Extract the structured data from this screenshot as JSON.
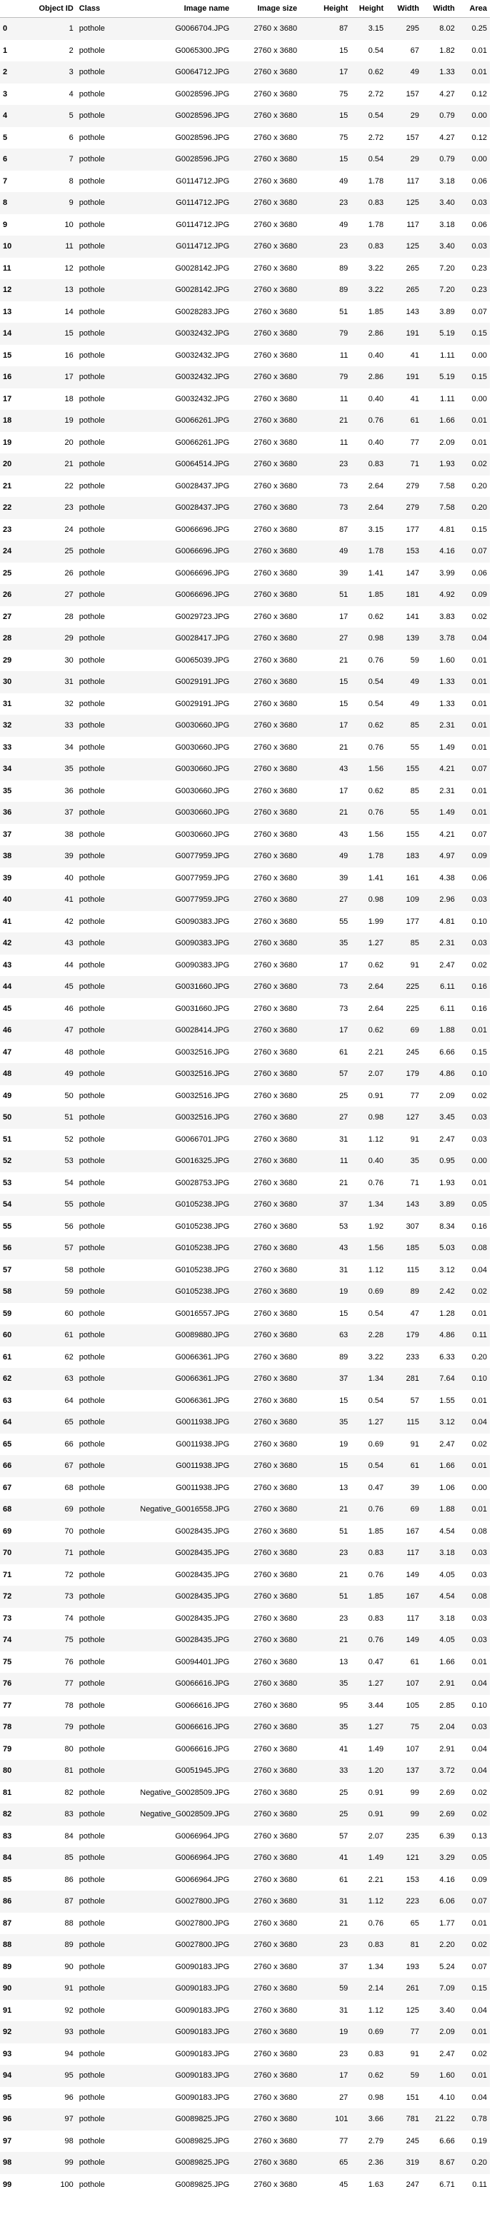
{
  "columns": [
    "",
    "Object ID",
    "Class",
    "Image name",
    "Image size",
    "Height",
    "Height",
    "Width",
    "Width",
    "Area"
  ],
  "rows": [
    [
      "0",
      "1",
      "pothole",
      "G0066704.JPG",
      "2760 x 3680",
      "87",
      "3.15",
      "295",
      "8.02",
      "0.25"
    ],
    [
      "1",
      "2",
      "pothole",
      "G0065300.JPG",
      "2760 x 3680",
      "15",
      "0.54",
      "67",
      "1.82",
      "0.01"
    ],
    [
      "2",
      "3",
      "pothole",
      "G0064712.JPG",
      "2760 x 3680",
      "17",
      "0.62",
      "49",
      "1.33",
      "0.01"
    ],
    [
      "3",
      "4",
      "pothole",
      "G0028596.JPG",
      "2760 x 3680",
      "75",
      "2.72",
      "157",
      "4.27",
      "0.12"
    ],
    [
      "4",
      "5",
      "pothole",
      "G0028596.JPG",
      "2760 x 3680",
      "15",
      "0.54",
      "29",
      "0.79",
      "0.00"
    ],
    [
      "5",
      "6",
      "pothole",
      "G0028596.JPG",
      "2760 x 3680",
      "75",
      "2.72",
      "157",
      "4.27",
      "0.12"
    ],
    [
      "6",
      "7",
      "pothole",
      "G0028596.JPG",
      "2760 x 3680",
      "15",
      "0.54",
      "29",
      "0.79",
      "0.00"
    ],
    [
      "7",
      "8",
      "pothole",
      "G0114712.JPG",
      "2760 x 3680",
      "49",
      "1.78",
      "117",
      "3.18",
      "0.06"
    ],
    [
      "8",
      "9",
      "pothole",
      "G0114712.JPG",
      "2760 x 3680",
      "23",
      "0.83",
      "125",
      "3.40",
      "0.03"
    ],
    [
      "9",
      "10",
      "pothole",
      "G0114712.JPG",
      "2760 x 3680",
      "49",
      "1.78",
      "117",
      "3.18",
      "0.06"
    ],
    [
      "10",
      "11",
      "pothole",
      "G0114712.JPG",
      "2760 x 3680",
      "23",
      "0.83",
      "125",
      "3.40",
      "0.03"
    ],
    [
      "11",
      "12",
      "pothole",
      "G0028142.JPG",
      "2760 x 3680",
      "89",
      "3.22",
      "265",
      "7.20",
      "0.23"
    ],
    [
      "12",
      "13",
      "pothole",
      "G0028142.JPG",
      "2760 x 3680",
      "89",
      "3.22",
      "265",
      "7.20",
      "0.23"
    ],
    [
      "13",
      "14",
      "pothole",
      "G0028283.JPG",
      "2760 x 3680",
      "51",
      "1.85",
      "143",
      "3.89",
      "0.07"
    ],
    [
      "14",
      "15",
      "pothole",
      "G0032432.JPG",
      "2760 x 3680",
      "79",
      "2.86",
      "191",
      "5.19",
      "0.15"
    ],
    [
      "15",
      "16",
      "pothole",
      "G0032432.JPG",
      "2760 x 3680",
      "11",
      "0.40",
      "41",
      "1.11",
      "0.00"
    ],
    [
      "16",
      "17",
      "pothole",
      "G0032432.JPG",
      "2760 x 3680",
      "79",
      "2.86",
      "191",
      "5.19",
      "0.15"
    ],
    [
      "17",
      "18",
      "pothole",
      "G0032432.JPG",
      "2760 x 3680",
      "11",
      "0.40",
      "41",
      "1.11",
      "0.00"
    ],
    [
      "18",
      "19",
      "pothole",
      "G0066261.JPG",
      "2760 x 3680",
      "21",
      "0.76",
      "61",
      "1.66",
      "0.01"
    ],
    [
      "19",
      "20",
      "pothole",
      "G0066261.JPG",
      "2760 x 3680",
      "11",
      "0.40",
      "77",
      "2.09",
      "0.01"
    ],
    [
      "20",
      "21",
      "pothole",
      "G0064514.JPG",
      "2760 x 3680",
      "23",
      "0.83",
      "71",
      "1.93",
      "0.02"
    ],
    [
      "21",
      "22",
      "pothole",
      "G0028437.JPG",
      "2760 x 3680",
      "73",
      "2.64",
      "279",
      "7.58",
      "0.20"
    ],
    [
      "22",
      "23",
      "pothole",
      "G0028437.JPG",
      "2760 x 3680",
      "73",
      "2.64",
      "279",
      "7.58",
      "0.20"
    ],
    [
      "23",
      "24",
      "pothole",
      "G0066696.JPG",
      "2760 x 3680",
      "87",
      "3.15",
      "177",
      "4.81",
      "0.15"
    ],
    [
      "24",
      "25",
      "pothole",
      "G0066696.JPG",
      "2760 x 3680",
      "49",
      "1.78",
      "153",
      "4.16",
      "0.07"
    ],
    [
      "25",
      "26",
      "pothole",
      "G0066696.JPG",
      "2760 x 3680",
      "39",
      "1.41",
      "147",
      "3.99",
      "0.06"
    ],
    [
      "26",
      "27",
      "pothole",
      "G0066696.JPG",
      "2760 x 3680",
      "51",
      "1.85",
      "181",
      "4.92",
      "0.09"
    ],
    [
      "27",
      "28",
      "pothole",
      "G0029723.JPG",
      "2760 x 3680",
      "17",
      "0.62",
      "141",
      "3.83",
      "0.02"
    ],
    [
      "28",
      "29",
      "pothole",
      "G0028417.JPG",
      "2760 x 3680",
      "27",
      "0.98",
      "139",
      "3.78",
      "0.04"
    ],
    [
      "29",
      "30",
      "pothole",
      "G0065039.JPG",
      "2760 x 3680",
      "21",
      "0.76",
      "59",
      "1.60",
      "0.01"
    ],
    [
      "30",
      "31",
      "pothole",
      "G0029191.JPG",
      "2760 x 3680",
      "15",
      "0.54",
      "49",
      "1.33",
      "0.01"
    ],
    [
      "31",
      "32",
      "pothole",
      "G0029191.JPG",
      "2760 x 3680",
      "15",
      "0.54",
      "49",
      "1.33",
      "0.01"
    ],
    [
      "32",
      "33",
      "pothole",
      "G0030660.JPG",
      "2760 x 3680",
      "17",
      "0.62",
      "85",
      "2.31",
      "0.01"
    ],
    [
      "33",
      "34",
      "pothole",
      "G0030660.JPG",
      "2760 x 3680",
      "21",
      "0.76",
      "55",
      "1.49",
      "0.01"
    ],
    [
      "34",
      "35",
      "pothole",
      "G0030660.JPG",
      "2760 x 3680",
      "43",
      "1.56",
      "155",
      "4.21",
      "0.07"
    ],
    [
      "35",
      "36",
      "pothole",
      "G0030660.JPG",
      "2760 x 3680",
      "17",
      "0.62",
      "85",
      "2.31",
      "0.01"
    ],
    [
      "36",
      "37",
      "pothole",
      "G0030660.JPG",
      "2760 x 3680",
      "21",
      "0.76",
      "55",
      "1.49",
      "0.01"
    ],
    [
      "37",
      "38",
      "pothole",
      "G0030660.JPG",
      "2760 x 3680",
      "43",
      "1.56",
      "155",
      "4.21",
      "0.07"
    ],
    [
      "38",
      "39",
      "pothole",
      "G0077959.JPG",
      "2760 x 3680",
      "49",
      "1.78",
      "183",
      "4.97",
      "0.09"
    ],
    [
      "39",
      "40",
      "pothole",
      "G0077959.JPG",
      "2760 x 3680",
      "39",
      "1.41",
      "161",
      "4.38",
      "0.06"
    ],
    [
      "40",
      "41",
      "pothole",
      "G0077959.JPG",
      "2760 x 3680",
      "27",
      "0.98",
      "109",
      "2.96",
      "0.03"
    ],
    [
      "41",
      "42",
      "pothole",
      "G0090383.JPG",
      "2760 x 3680",
      "55",
      "1.99",
      "177",
      "4.81",
      "0.10"
    ],
    [
      "42",
      "43",
      "pothole",
      "G0090383.JPG",
      "2760 x 3680",
      "35",
      "1.27",
      "85",
      "2.31",
      "0.03"
    ],
    [
      "43",
      "44",
      "pothole",
      "G0090383.JPG",
      "2760 x 3680",
      "17",
      "0.62",
      "91",
      "2.47",
      "0.02"
    ],
    [
      "44",
      "45",
      "pothole",
      "G0031660.JPG",
      "2760 x 3680",
      "73",
      "2.64",
      "225",
      "6.11",
      "0.16"
    ],
    [
      "45",
      "46",
      "pothole",
      "G0031660.JPG",
      "2760 x 3680",
      "73",
      "2.64",
      "225",
      "6.11",
      "0.16"
    ],
    [
      "46",
      "47",
      "pothole",
      "G0028414.JPG",
      "2760 x 3680",
      "17",
      "0.62",
      "69",
      "1.88",
      "0.01"
    ],
    [
      "47",
      "48",
      "pothole",
      "G0032516.JPG",
      "2760 x 3680",
      "61",
      "2.21",
      "245",
      "6.66",
      "0.15"
    ],
    [
      "48",
      "49",
      "pothole",
      "G0032516.JPG",
      "2760 x 3680",
      "57",
      "2.07",
      "179",
      "4.86",
      "0.10"
    ],
    [
      "49",
      "50",
      "pothole",
      "G0032516.JPG",
      "2760 x 3680",
      "25",
      "0.91",
      "77",
      "2.09",
      "0.02"
    ],
    [
      "50",
      "51",
      "pothole",
      "G0032516.JPG",
      "2760 x 3680",
      "27",
      "0.98",
      "127",
      "3.45",
      "0.03"
    ],
    [
      "51",
      "52",
      "pothole",
      "G0066701.JPG",
      "2760 x 3680",
      "31",
      "1.12",
      "91",
      "2.47",
      "0.03"
    ],
    [
      "52",
      "53",
      "pothole",
      "G0016325.JPG",
      "2760 x 3680",
      "11",
      "0.40",
      "35",
      "0.95",
      "0.00"
    ],
    [
      "53",
      "54",
      "pothole",
      "G0028753.JPG",
      "2760 x 3680",
      "21",
      "0.76",
      "71",
      "1.93",
      "0.01"
    ],
    [
      "54",
      "55",
      "pothole",
      "G0105238.JPG",
      "2760 x 3680",
      "37",
      "1.34",
      "143",
      "3.89",
      "0.05"
    ],
    [
      "55",
      "56",
      "pothole",
      "G0105238.JPG",
      "2760 x 3680",
      "53",
      "1.92",
      "307",
      "8.34",
      "0.16"
    ],
    [
      "56",
      "57",
      "pothole",
      "G0105238.JPG",
      "2760 x 3680",
      "43",
      "1.56",
      "185",
      "5.03",
      "0.08"
    ],
    [
      "57",
      "58",
      "pothole",
      "G0105238.JPG",
      "2760 x 3680",
      "31",
      "1.12",
      "115",
      "3.12",
      "0.04"
    ],
    [
      "58",
      "59",
      "pothole",
      "G0105238.JPG",
      "2760 x 3680",
      "19",
      "0.69",
      "89",
      "2.42",
      "0.02"
    ],
    [
      "59",
      "60",
      "pothole",
      "G0016557.JPG",
      "2760 x 3680",
      "15",
      "0.54",
      "47",
      "1.28",
      "0.01"
    ],
    [
      "60",
      "61",
      "pothole",
      "G0089880.JPG",
      "2760 x 3680",
      "63",
      "2.28",
      "179",
      "4.86",
      "0.11"
    ],
    [
      "61",
      "62",
      "pothole",
      "G0066361.JPG",
      "2760 x 3680",
      "89",
      "3.22",
      "233",
      "6.33",
      "0.20"
    ],
    [
      "62",
      "63",
      "pothole",
      "G0066361.JPG",
      "2760 x 3680",
      "37",
      "1.34",
      "281",
      "7.64",
      "0.10"
    ],
    [
      "63",
      "64",
      "pothole",
      "G0066361.JPG",
      "2760 x 3680",
      "15",
      "0.54",
      "57",
      "1.55",
      "0.01"
    ],
    [
      "64",
      "65",
      "pothole",
      "G0011938.JPG",
      "2760 x 3680",
      "35",
      "1.27",
      "115",
      "3.12",
      "0.04"
    ],
    [
      "65",
      "66",
      "pothole",
      "G0011938.JPG",
      "2760 x 3680",
      "19",
      "0.69",
      "91",
      "2.47",
      "0.02"
    ],
    [
      "66",
      "67",
      "pothole",
      "G0011938.JPG",
      "2760 x 3680",
      "15",
      "0.54",
      "61",
      "1.66",
      "0.01"
    ],
    [
      "67",
      "68",
      "pothole",
      "G0011938.JPG",
      "2760 x 3680",
      "13",
      "0.47",
      "39",
      "1.06",
      "0.00"
    ],
    [
      "68",
      "69",
      "pothole",
      "Negative_G0016558.JPG",
      "2760 x 3680",
      "21",
      "0.76",
      "69",
      "1.88",
      "0.01"
    ],
    [
      "69",
      "70",
      "pothole",
      "G0028435.JPG",
      "2760 x 3680",
      "51",
      "1.85",
      "167",
      "4.54",
      "0.08"
    ],
    [
      "70",
      "71",
      "pothole",
      "G0028435.JPG",
      "2760 x 3680",
      "23",
      "0.83",
      "117",
      "3.18",
      "0.03"
    ],
    [
      "71",
      "72",
      "pothole",
      "G0028435.JPG",
      "2760 x 3680",
      "21",
      "0.76",
      "149",
      "4.05",
      "0.03"
    ],
    [
      "72",
      "73",
      "pothole",
      "G0028435.JPG",
      "2760 x 3680",
      "51",
      "1.85",
      "167",
      "4.54",
      "0.08"
    ],
    [
      "73",
      "74",
      "pothole",
      "G0028435.JPG",
      "2760 x 3680",
      "23",
      "0.83",
      "117",
      "3.18",
      "0.03"
    ],
    [
      "74",
      "75",
      "pothole",
      "G0028435.JPG",
      "2760 x 3680",
      "21",
      "0.76",
      "149",
      "4.05",
      "0.03"
    ],
    [
      "75",
      "76",
      "pothole",
      "G0094401.JPG",
      "2760 x 3680",
      "13",
      "0.47",
      "61",
      "1.66",
      "0.01"
    ],
    [
      "76",
      "77",
      "pothole",
      "G0066616.JPG",
      "2760 x 3680",
      "35",
      "1.27",
      "107",
      "2.91",
      "0.04"
    ],
    [
      "77",
      "78",
      "pothole",
      "G0066616.JPG",
      "2760 x 3680",
      "95",
      "3.44",
      "105",
      "2.85",
      "0.10"
    ],
    [
      "78",
      "79",
      "pothole",
      "G0066616.JPG",
      "2760 x 3680",
      "35",
      "1.27",
      "75",
      "2.04",
      "0.03"
    ],
    [
      "79",
      "80",
      "pothole",
      "G0066616.JPG",
      "2760 x 3680",
      "41",
      "1.49",
      "107",
      "2.91",
      "0.04"
    ],
    [
      "80",
      "81",
      "pothole",
      "G0051945.JPG",
      "2760 x 3680",
      "33",
      "1.20",
      "137",
      "3.72",
      "0.04"
    ],
    [
      "81",
      "82",
      "pothole",
      "Negative_G0028509.JPG",
      "2760 x 3680",
      "25",
      "0.91",
      "99",
      "2.69",
      "0.02"
    ],
    [
      "82",
      "83",
      "pothole",
      "Negative_G0028509.JPG",
      "2760 x 3680",
      "25",
      "0.91",
      "99",
      "2.69",
      "0.02"
    ],
    [
      "83",
      "84",
      "pothole",
      "G0066964.JPG",
      "2760 x 3680",
      "57",
      "2.07",
      "235",
      "6.39",
      "0.13"
    ],
    [
      "84",
      "85",
      "pothole",
      "G0066964.JPG",
      "2760 x 3680",
      "41",
      "1.49",
      "121",
      "3.29",
      "0.05"
    ],
    [
      "85",
      "86",
      "pothole",
      "G0066964.JPG",
      "2760 x 3680",
      "61",
      "2.21",
      "153",
      "4.16",
      "0.09"
    ],
    [
      "86",
      "87",
      "pothole",
      "G0027800.JPG",
      "2760 x 3680",
      "31",
      "1.12",
      "223",
      "6.06",
      "0.07"
    ],
    [
      "87",
      "88",
      "pothole",
      "G0027800.JPG",
      "2760 x 3680",
      "21",
      "0.76",
      "65",
      "1.77",
      "0.01"
    ],
    [
      "88",
      "89",
      "pothole",
      "G0027800.JPG",
      "2760 x 3680",
      "23",
      "0.83",
      "81",
      "2.20",
      "0.02"
    ],
    [
      "89",
      "90",
      "pothole",
      "G0090183.JPG",
      "2760 x 3680",
      "37",
      "1.34",
      "193",
      "5.24",
      "0.07"
    ],
    [
      "90",
      "91",
      "pothole",
      "G0090183.JPG",
      "2760 x 3680",
      "59",
      "2.14",
      "261",
      "7.09",
      "0.15"
    ],
    [
      "91",
      "92",
      "pothole",
      "G0090183.JPG",
      "2760 x 3680",
      "31",
      "1.12",
      "125",
      "3.40",
      "0.04"
    ],
    [
      "92",
      "93",
      "pothole",
      "G0090183.JPG",
      "2760 x 3680",
      "19",
      "0.69",
      "77",
      "2.09",
      "0.01"
    ],
    [
      "93",
      "94",
      "pothole",
      "G0090183.JPG",
      "2760 x 3680",
      "23",
      "0.83",
      "91",
      "2.47",
      "0.02"
    ],
    [
      "94",
      "95",
      "pothole",
      "G0090183.JPG",
      "2760 x 3680",
      "17",
      "0.62",
      "59",
      "1.60",
      "0.01"
    ],
    [
      "95",
      "96",
      "pothole",
      "G0090183.JPG",
      "2760 x 3680",
      "27",
      "0.98",
      "151",
      "4.10",
      "0.04"
    ],
    [
      "96",
      "97",
      "pothole",
      "G0089825.JPG",
      "2760 x 3680",
      "101",
      "3.66",
      "781",
      "21.22",
      "0.78"
    ],
    [
      "97",
      "98",
      "pothole",
      "G0089825.JPG",
      "2760 x 3680",
      "77",
      "2.79",
      "245",
      "6.66",
      "0.19"
    ],
    [
      "98",
      "99",
      "pothole",
      "G0089825.JPG",
      "2760 x 3680",
      "65",
      "2.36",
      "319",
      "8.67",
      "0.20"
    ],
    [
      "99",
      "100",
      "pothole",
      "G0089825.JPG",
      "2760 x 3680",
      "45",
      "1.63",
      "247",
      "6.71",
      "0.11"
    ]
  ]
}
